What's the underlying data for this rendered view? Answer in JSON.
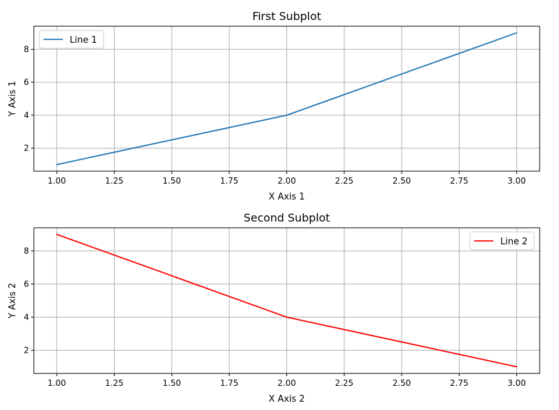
{
  "chart_data": [
    {
      "type": "line",
      "title": "First Subplot",
      "xlabel": "X Axis 1",
      "ylabel": "Y Axis 1",
      "xlim": [
        0.9,
        3.1
      ],
      "ylim": [
        0.6,
        9.4
      ],
      "xticks": [
        1.0,
        1.25,
        1.5,
        1.75,
        2.0,
        2.25,
        2.5,
        2.75,
        3.0
      ],
      "xtick_labels": [
        "1.00",
        "1.25",
        "1.50",
        "1.75",
        "2.00",
        "2.25",
        "2.50",
        "2.75",
        "3.00"
      ],
      "yticks": [
        2,
        4,
        6,
        8
      ],
      "ytick_labels": [
        "2",
        "4",
        "6",
        "8"
      ],
      "grid": true,
      "legend_position": "upper-left",
      "series": [
        {
          "name": "Line 1",
          "color": "#1f77b4",
          "x": [
            1,
            2,
            3
          ],
          "y": [
            1,
            4,
            9
          ]
        }
      ]
    },
    {
      "type": "line",
      "title": "Second Subplot",
      "xlabel": "X Axis 2",
      "ylabel": "Y Axis 2",
      "xlim": [
        0.9,
        3.1
      ],
      "ylim": [
        0.6,
        9.4
      ],
      "xticks": [
        1.0,
        1.25,
        1.5,
        1.75,
        2.0,
        2.25,
        2.5,
        2.75,
        3.0
      ],
      "xtick_labels": [
        "1.00",
        "1.25",
        "1.50",
        "1.75",
        "2.00",
        "2.25",
        "2.50",
        "2.75",
        "3.00"
      ],
      "yticks": [
        2,
        4,
        6,
        8
      ],
      "ytick_labels": [
        "2",
        "4",
        "6",
        "8"
      ],
      "grid": true,
      "legend_position": "upper-right",
      "series": [
        {
          "name": "Line 2",
          "color": "#ff0000",
          "x": [
            1,
            2,
            3
          ],
          "y": [
            9,
            4,
            1
          ]
        }
      ]
    }
  ]
}
